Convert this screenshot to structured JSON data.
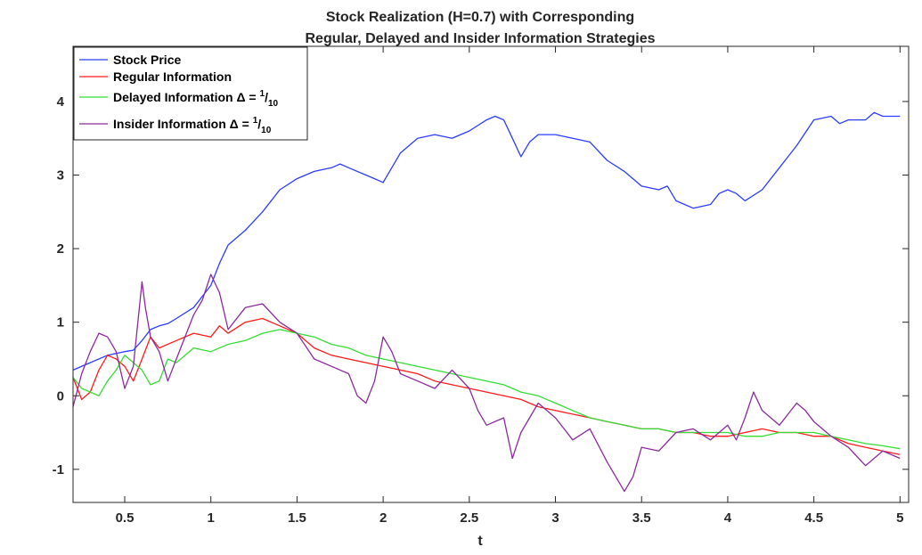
{
  "chart_data": {
    "type": "line",
    "title_lines": [
      "Stock Realization (H=0.7) with Corresponding",
      "Regular, Delayed and Insider Information Strategies"
    ],
    "xlabel": "t",
    "ylabel": "",
    "xlim": [
      0.2,
      5.05
    ],
    "ylim": [
      -1.45,
      4.75
    ],
    "xticks": [
      0.5,
      1,
      1.5,
      2,
      2.5,
      3,
      3.5,
      4,
      4.5,
      5
    ],
    "xtick_labels": [
      "0.5",
      "1",
      "1.5",
      "2",
      "2.5",
      "3",
      "3.5",
      "4",
      "4.5",
      "5"
    ],
    "yticks": [
      -1,
      0,
      1,
      2,
      3,
      4
    ],
    "ytick_labels": [
      "-1",
      "0",
      "1",
      "2",
      "3",
      "4"
    ],
    "grid": false,
    "legend_position": "top-left",
    "legend": [
      {
        "label": "Stock Price",
        "color": "#2b3cff"
      },
      {
        "label": "Regular Information",
        "color": "#ff1a1a"
      },
      {
        "label": "Delayed Information Δ = ",
        "sup": "1",
        "slash": "/",
        "sub": "10",
        "color": "#33dd33"
      },
      {
        "label": "Insider Information Δ = ",
        "sup": "1",
        "slash": "/",
        "sub": "10",
        "color": "#8b2a9e"
      }
    ],
    "series": [
      {
        "name": "Stock Price",
        "color": "#2b3cff",
        "points": [
          [
            0.2,
            0.35
          ],
          [
            0.3,
            0.45
          ],
          [
            0.4,
            0.55
          ],
          [
            0.5,
            0.6
          ],
          [
            0.55,
            0.62
          ],
          [
            0.6,
            0.75
          ],
          [
            0.65,
            0.9
          ],
          [
            0.7,
            0.95
          ],
          [
            0.75,
            0.98
          ],
          [
            0.8,
            1.05
          ],
          [
            0.9,
            1.2
          ],
          [
            1.0,
            1.5
          ],
          [
            1.05,
            1.8
          ],
          [
            1.1,
            2.05
          ],
          [
            1.2,
            2.25
          ],
          [
            1.3,
            2.5
          ],
          [
            1.4,
            2.8
          ],
          [
            1.5,
            2.95
          ],
          [
            1.6,
            3.05
          ],
          [
            1.7,
            3.1
          ],
          [
            1.75,
            3.15
          ],
          [
            1.8,
            3.1
          ],
          [
            1.9,
            3.0
          ],
          [
            1.95,
            2.95
          ],
          [
            2.0,
            2.9
          ],
          [
            2.05,
            3.1
          ],
          [
            2.1,
            3.3
          ],
          [
            2.2,
            3.5
          ],
          [
            2.3,
            3.55
          ],
          [
            2.4,
            3.5
          ],
          [
            2.5,
            3.6
          ],
          [
            2.6,
            3.75
          ],
          [
            2.65,
            3.8
          ],
          [
            2.7,
            3.75
          ],
          [
            2.75,
            3.5
          ],
          [
            2.8,
            3.25
          ],
          [
            2.85,
            3.45
          ],
          [
            2.9,
            3.55
          ],
          [
            3.0,
            3.55
          ],
          [
            3.1,
            3.5
          ],
          [
            3.2,
            3.45
          ],
          [
            3.3,
            3.2
          ],
          [
            3.4,
            3.05
          ],
          [
            3.5,
            2.85
          ],
          [
            3.6,
            2.8
          ],
          [
            3.65,
            2.85
          ],
          [
            3.7,
            2.65
          ],
          [
            3.8,
            2.55
          ],
          [
            3.9,
            2.6
          ],
          [
            3.95,
            2.75
          ],
          [
            4.0,
            2.8
          ],
          [
            4.05,
            2.75
          ],
          [
            4.1,
            2.65
          ],
          [
            4.2,
            2.8
          ],
          [
            4.3,
            3.1
          ],
          [
            4.4,
            3.4
          ],
          [
            4.5,
            3.75
          ],
          [
            4.6,
            3.8
          ],
          [
            4.65,
            3.7
          ],
          [
            4.7,
            3.75
          ],
          [
            4.8,
            3.75
          ],
          [
            4.85,
            3.85
          ],
          [
            4.9,
            3.8
          ],
          [
            5.0,
            3.8
          ]
        ]
      },
      {
        "name": "Regular Information",
        "color": "#ff1a1a",
        "points": [
          [
            0.2,
            0.25
          ],
          [
            0.25,
            -0.05
          ],
          [
            0.3,
            0.05
          ],
          [
            0.35,
            0.35
          ],
          [
            0.4,
            0.55
          ],
          [
            0.45,
            0.5
          ],
          [
            0.5,
            0.4
          ],
          [
            0.55,
            0.2
          ],
          [
            0.6,
            0.5
          ],
          [
            0.65,
            0.8
          ],
          [
            0.7,
            0.65
          ],
          [
            0.8,
            0.75
          ],
          [
            0.9,
            0.85
          ],
          [
            1.0,
            0.8
          ],
          [
            1.05,
            0.95
          ],
          [
            1.1,
            0.85
          ],
          [
            1.2,
            1.0
          ],
          [
            1.3,
            1.05
          ],
          [
            1.4,
            0.95
          ],
          [
            1.5,
            0.85
          ],
          [
            1.6,
            0.65
          ],
          [
            1.7,
            0.55
          ],
          [
            1.8,
            0.5
          ],
          [
            1.9,
            0.45
          ],
          [
            2.0,
            0.4
          ],
          [
            2.1,
            0.35
          ],
          [
            2.2,
            0.3
          ],
          [
            2.3,
            0.2
          ],
          [
            2.4,
            0.15
          ],
          [
            2.5,
            0.1
          ],
          [
            2.6,
            0.05
          ],
          [
            2.7,
            0.0
          ],
          [
            2.8,
            -0.05
          ],
          [
            2.9,
            -0.15
          ],
          [
            3.0,
            -0.2
          ],
          [
            3.1,
            -0.25
          ],
          [
            3.2,
            -0.3
          ],
          [
            3.3,
            -0.35
          ],
          [
            3.4,
            -0.4
          ],
          [
            3.5,
            -0.45
          ],
          [
            3.6,
            -0.45
          ],
          [
            3.7,
            -0.5
          ],
          [
            3.8,
            -0.5
          ],
          [
            3.9,
            -0.55
          ],
          [
            4.0,
            -0.55
          ],
          [
            4.1,
            -0.5
          ],
          [
            4.2,
            -0.45
          ],
          [
            4.3,
            -0.5
          ],
          [
            4.4,
            -0.5
          ],
          [
            4.5,
            -0.55
          ],
          [
            4.6,
            -0.55
          ],
          [
            4.7,
            -0.65
          ],
          [
            4.8,
            -0.7
          ],
          [
            4.9,
            -0.75
          ],
          [
            5.0,
            -0.8
          ]
        ]
      },
      {
        "name": "Delayed Information Δ = 1/10",
        "color": "#33dd33",
        "points": [
          [
            0.2,
            0.25
          ],
          [
            0.25,
            0.1
          ],
          [
            0.3,
            0.05
          ],
          [
            0.35,
            0.0
          ],
          [
            0.4,
            0.2
          ],
          [
            0.45,
            0.35
          ],
          [
            0.5,
            0.55
          ],
          [
            0.55,
            0.45
          ],
          [
            0.6,
            0.35
          ],
          [
            0.65,
            0.15
          ],
          [
            0.7,
            0.2
          ],
          [
            0.75,
            0.5
          ],
          [
            0.8,
            0.45
          ],
          [
            0.9,
            0.65
          ],
          [
            1.0,
            0.6
          ],
          [
            1.1,
            0.7
          ],
          [
            1.2,
            0.75
          ],
          [
            1.3,
            0.85
          ],
          [
            1.4,
            0.9
          ],
          [
            1.5,
            0.85
          ],
          [
            1.6,
            0.8
          ],
          [
            1.7,
            0.7
          ],
          [
            1.8,
            0.65
          ],
          [
            1.9,
            0.55
          ],
          [
            2.0,
            0.5
          ],
          [
            2.1,
            0.45
          ],
          [
            2.2,
            0.4
          ],
          [
            2.3,
            0.35
          ],
          [
            2.4,
            0.3
          ],
          [
            2.5,
            0.25
          ],
          [
            2.6,
            0.2
          ],
          [
            2.7,
            0.15
          ],
          [
            2.8,
            0.05
          ],
          [
            2.9,
            0.0
          ],
          [
            3.0,
            -0.1
          ],
          [
            3.1,
            -0.2
          ],
          [
            3.2,
            -0.3
          ],
          [
            3.3,
            -0.35
          ],
          [
            3.4,
            -0.4
          ],
          [
            3.5,
            -0.45
          ],
          [
            3.6,
            -0.45
          ],
          [
            3.7,
            -0.5
          ],
          [
            3.8,
            -0.5
          ],
          [
            3.9,
            -0.5
          ],
          [
            4.0,
            -0.5
          ],
          [
            4.1,
            -0.55
          ],
          [
            4.2,
            -0.55
          ],
          [
            4.3,
            -0.5
          ],
          [
            4.4,
            -0.5
          ],
          [
            4.5,
            -0.5
          ],
          [
            4.6,
            -0.55
          ],
          [
            4.7,
            -0.6
          ],
          [
            4.8,
            -0.65
          ],
          [
            4.9,
            -0.68
          ],
          [
            5.0,
            -0.72
          ]
        ]
      },
      {
        "name": "Insider Information Δ = 1/10",
        "color": "#8b2a9e",
        "points": [
          [
            0.2,
            -0.15
          ],
          [
            0.25,
            0.3
          ],
          [
            0.3,
            0.6
          ],
          [
            0.35,
            0.85
          ],
          [
            0.4,
            0.8
          ],
          [
            0.45,
            0.6
          ],
          [
            0.5,
            0.1
          ],
          [
            0.55,
            0.4
          ],
          [
            0.6,
            1.55
          ],
          [
            0.62,
            1.2
          ],
          [
            0.65,
            0.8
          ],
          [
            0.7,
            0.6
          ],
          [
            0.75,
            0.2
          ],
          [
            0.8,
            0.5
          ],
          [
            0.9,
            1.1
          ],
          [
            0.95,
            1.3
          ],
          [
            1.0,
            1.65
          ],
          [
            1.05,
            1.4
          ],
          [
            1.1,
            0.9
          ],
          [
            1.2,
            1.2
          ],
          [
            1.3,
            1.25
          ],
          [
            1.4,
            1.0
          ],
          [
            1.5,
            0.85
          ],
          [
            1.6,
            0.5
          ],
          [
            1.7,
            0.4
          ],
          [
            1.8,
            0.3
          ],
          [
            1.85,
            0.0
          ],
          [
            1.9,
            -0.1
          ],
          [
            1.95,
            0.2
          ],
          [
            2.0,
            0.8
          ],
          [
            2.05,
            0.6
          ],
          [
            2.1,
            0.3
          ],
          [
            2.2,
            0.2
          ],
          [
            2.3,
            0.1
          ],
          [
            2.4,
            0.35
          ],
          [
            2.5,
            0.1
          ],
          [
            2.55,
            -0.2
          ],
          [
            2.6,
            -0.4
          ],
          [
            2.7,
            -0.3
          ],
          [
            2.75,
            -0.85
          ],
          [
            2.8,
            -0.5
          ],
          [
            2.9,
            -0.1
          ],
          [
            3.0,
            -0.3
          ],
          [
            3.1,
            -0.6
          ],
          [
            3.2,
            -0.45
          ],
          [
            3.3,
            -0.9
          ],
          [
            3.35,
            -1.1
          ],
          [
            3.4,
            -1.3
          ],
          [
            3.45,
            -1.1
          ],
          [
            3.5,
            -0.7
          ],
          [
            3.6,
            -0.75
          ],
          [
            3.7,
            -0.5
          ],
          [
            3.8,
            -0.45
          ],
          [
            3.9,
            -0.6
          ],
          [
            4.0,
            -0.4
          ],
          [
            4.05,
            -0.6
          ],
          [
            4.1,
            -0.3
          ],
          [
            4.15,
            0.05
          ],
          [
            4.2,
            -0.2
          ],
          [
            4.3,
            -0.4
          ],
          [
            4.4,
            -0.1
          ],
          [
            4.45,
            -0.2
          ],
          [
            4.5,
            -0.35
          ],
          [
            4.6,
            -0.55
          ],
          [
            4.7,
            -0.7
          ],
          [
            4.8,
            -0.95
          ],
          [
            4.9,
            -0.75
          ],
          [
            5.0,
            -0.85
          ]
        ]
      }
    ]
  }
}
